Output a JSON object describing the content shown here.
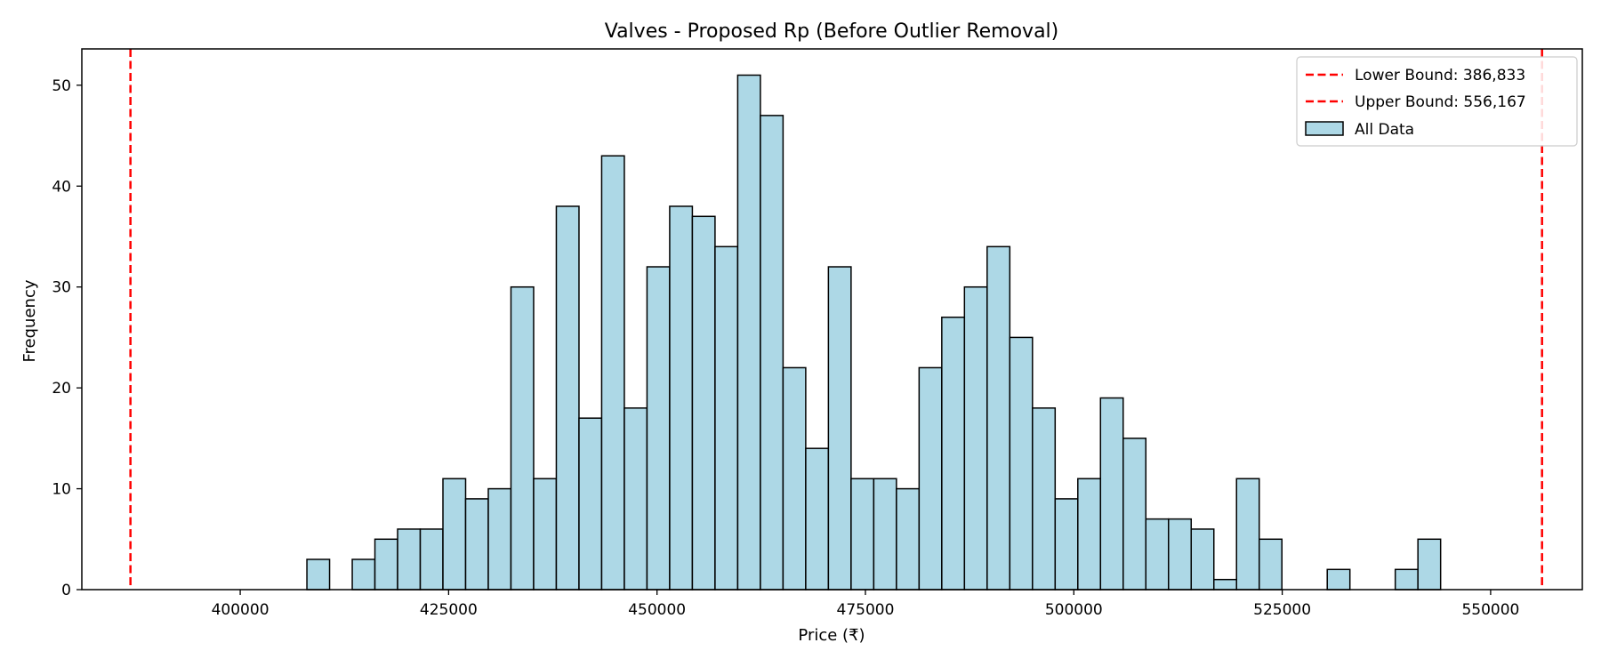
{
  "chart_data": {
    "type": "bar",
    "title": "Valves - Proposed Rp (Before Outlier Removal)",
    "xlabel": "Price (₹)",
    "ylabel": "Frequency",
    "xlim": [
      381000,
      561000
    ],
    "ylim": [
      0,
      53.6
    ],
    "x_ticks": [
      400000,
      425000,
      450000,
      475000,
      500000,
      525000,
      550000
    ],
    "y_ticks": [
      0,
      10,
      20,
      30,
      40,
      50
    ],
    "bin_start": 408000,
    "bin_width": 2720,
    "bin_counts": [
      3,
      0,
      3,
      5,
      6,
      6,
      11,
      9,
      10,
      30,
      11,
      38,
      17,
      43,
      18,
      32,
      38,
      37,
      34,
      51,
      47,
      22,
      14,
      32,
      11,
      11,
      10,
      22,
      27,
      30,
      34,
      25,
      18,
      9,
      11,
      19,
      15,
      7,
      7,
      6,
      1,
      11,
      5,
      0,
      0,
      2,
      0,
      0,
      2,
      5
    ],
    "bar_color": "#add8e6",
    "bar_edge_color": "#000000",
    "grid": false,
    "legend_position": "top-right",
    "reference_lines": [
      {
        "label": "Lower Bound: 386,833",
        "x": 386833,
        "color": "#ff0000",
        "style": "dashed"
      },
      {
        "label": "Upper Bound: 556,167",
        "x": 556167,
        "color": "#ff0000",
        "style": "dashed"
      }
    ],
    "series": [
      {
        "name": "All Data"
      }
    ]
  }
}
